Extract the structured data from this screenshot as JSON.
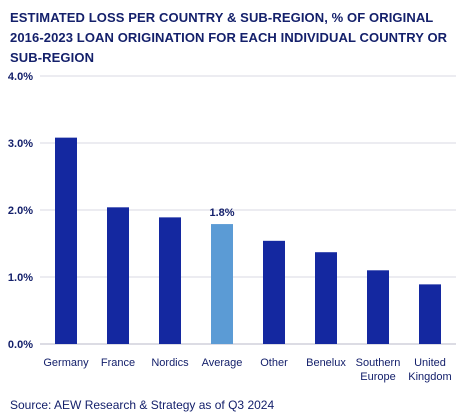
{
  "chart_data": {
    "type": "bar",
    "title": "ESTIMATED LOSS PER COUNTRY & SUB-REGION, % OF ORIGINAL 2016-2023 LOAN ORIGINATION FOR EACH INDIVIDUAL COUNTRY OR SUB-REGION",
    "categories": [
      [
        "Germany"
      ],
      [
        "France"
      ],
      [
        "Nordics"
      ],
      [
        "Average"
      ],
      [
        "Other"
      ],
      [
        "Benelux"
      ],
      [
        "Southern",
        "Europe"
      ],
      [
        "United",
        "Kingdom"
      ]
    ],
    "values": [
      3.08,
      2.04,
      1.89,
      1.79,
      1.54,
      1.37,
      1.1,
      0.89
    ],
    "highlight_index": 3,
    "data_labels": [
      "",
      "",
      "",
      "1.8%",
      "",
      "",
      "",
      ""
    ],
    "yticks": [
      "0.0%",
      "1.0%",
      "2.0%",
      "3.0%",
      "4.0%"
    ],
    "ylim": [
      0,
      4
    ],
    "grid": true,
    "colors": {
      "bar": "#1428a0",
      "highlight": "#5b9bd5",
      "grid": "#d9d9e3",
      "text": "#14206b"
    }
  },
  "source": "Source: AEW Research & Strategy as of Q3 2024"
}
